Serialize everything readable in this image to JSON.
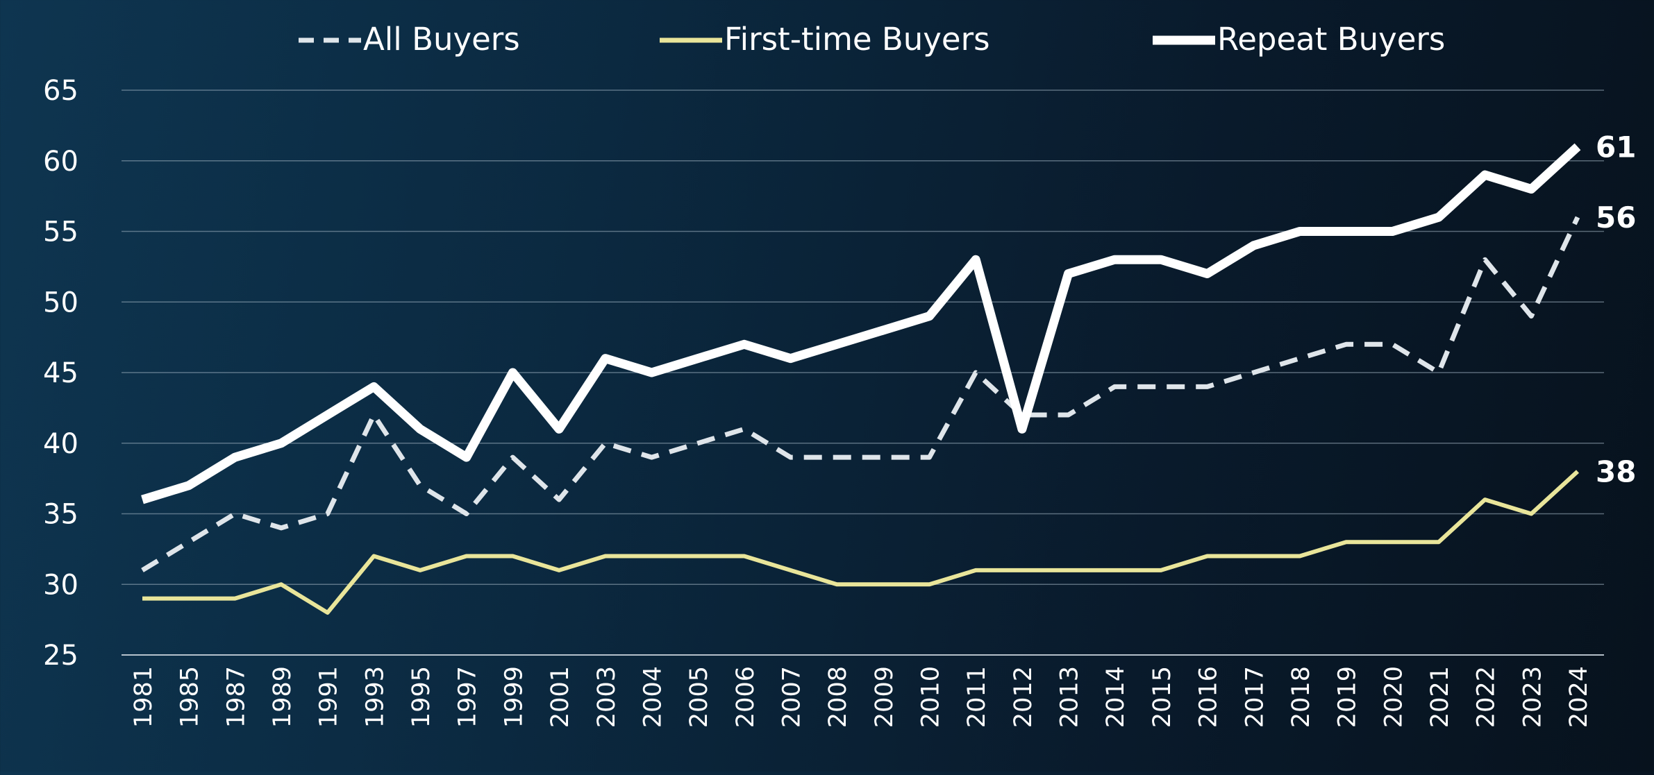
{
  "chart_data": {
    "type": "line",
    "title": "",
    "xlabel": "",
    "ylabel": "",
    "ylim": [
      25,
      65
    ],
    "yticks": [
      "25",
      "30",
      "35",
      "40",
      "45",
      "50",
      "55",
      "60",
      "65"
    ],
    "grid": true,
    "legend_position": "top",
    "categories": [
      "1981",
      "1985",
      "1987",
      "1989",
      "1991",
      "1993",
      "1995",
      "1997",
      "1999",
      "2001",
      "2003",
      "2004",
      "2005",
      "2006",
      "2007",
      "2008",
      "2009",
      "2010",
      "2011",
      "2012",
      "2013",
      "2014",
      "2015",
      "2016",
      "2017",
      "2018",
      "2019",
      "2020",
      "2021",
      "2022",
      "2023",
      "2024"
    ],
    "series": [
      {
        "name": "All Buyers",
        "style": "dashed",
        "color": "#dfe5ea",
        "values": [
          31,
          33,
          35,
          34,
          35,
          42,
          37,
          35,
          39,
          36,
          40,
          39,
          40,
          41,
          39,
          39,
          39,
          39,
          45,
          42,
          42,
          44,
          44,
          44,
          45,
          46,
          47,
          47,
          45,
          53,
          49,
          56
        ],
        "end_label": "56"
      },
      {
        "name": "First-time Buyers",
        "style": "solid",
        "color": "#e9e59a",
        "values": [
          29,
          29,
          29,
          30,
          28,
          32,
          31,
          32,
          32,
          31,
          32,
          32,
          32,
          32,
          31,
          30,
          30,
          30,
          31,
          31,
          31,
          31,
          31,
          32,
          32,
          32,
          33,
          33,
          33,
          36,
          35,
          38
        ],
        "end_label": "38"
      },
      {
        "name": "Repeat Buyers",
        "style": "solid",
        "color": "#ffffff",
        "values": [
          36,
          37,
          39,
          40,
          42,
          44,
          41,
          39,
          45,
          41,
          46,
          45,
          46,
          47,
          46,
          47,
          48,
          49,
          53,
          41,
          52,
          53,
          53,
          52,
          54,
          55,
          55,
          55,
          56,
          59,
          58,
          61
        ],
        "end_label": "61"
      }
    ]
  }
}
